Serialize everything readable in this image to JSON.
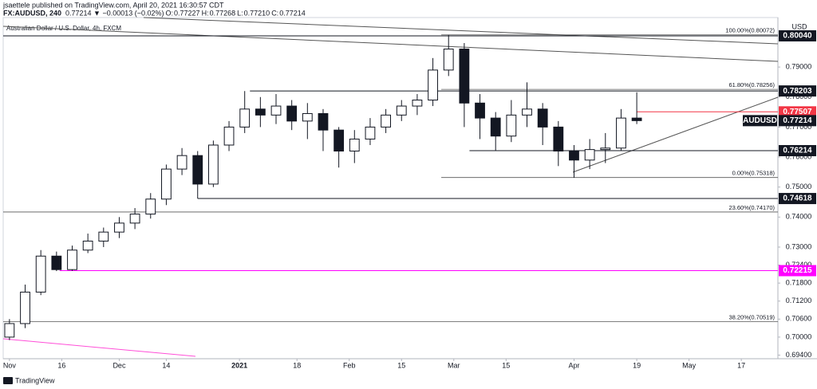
{
  "header": {
    "author_line": "jsaettele published on TradingView.com, April 20, 2021 16:30:57 CDT",
    "symbol": "FX:AUDUSD, 240",
    "change": "0.77214 ▼ −0.00013 (−0.02%)",
    "ohlc": [
      {
        "key": "O:",
        "value": "0.77227"
      },
      {
        "key": "H:",
        "value": "0.77268"
      },
      {
        "key": "L:",
        "value": "0.77210"
      },
      {
        "key": "C:",
        "value": "0.77214"
      }
    ]
  },
  "footer": {
    "brand": "TradingView"
  },
  "chart_data": {
    "type": "candlestick",
    "title": "Australian Dollar / U.S. Dollar, 4h, FXCM",
    "currency": "USD",
    "x": [
      0,
      3,
      6,
      9,
      12,
      15,
      18,
      21,
      24,
      27,
      30,
      33,
      36,
      39,
      42,
      45,
      48,
      51,
      54,
      57,
      60,
      63,
      66,
      69,
      72,
      75,
      78,
      81,
      84,
      87,
      90,
      93,
      96,
      99,
      102,
      105,
      108,
      111,
      114,
      117,
      120
    ],
    "open": [
      0.7,
      0.7045,
      0.715,
      0.727,
      0.7225,
      0.729,
      0.732,
      0.735,
      0.738,
      0.741,
      0.746,
      0.756,
      0.7605,
      0.751,
      0.764,
      0.77,
      0.776,
      0.774,
      0.777,
      0.772,
      0.7745,
      0.769,
      0.762,
      0.766,
      0.77,
      0.774,
      0.777,
      0.779,
      0.789,
      0.796,
      0.778,
      0.773,
      0.767,
      0.774,
      0.776,
      0.77,
      0.762,
      0.759,
      0.7625,
      0.763,
      0.773
    ],
    "high": [
      0.706,
      0.7175,
      0.729,
      0.7285,
      0.7305,
      0.7345,
      0.7365,
      0.74,
      0.743,
      0.748,
      0.7575,
      0.763,
      0.762,
      0.7655,
      0.772,
      0.782,
      0.78,
      0.781,
      0.779,
      0.778,
      0.776,
      0.77,
      0.769,
      0.773,
      0.776,
      0.779,
      0.781,
      0.793,
      0.8007,
      0.798,
      0.781,
      0.775,
      0.779,
      0.7849,
      0.778,
      0.772,
      0.764,
      0.766,
      0.768,
      0.776,
      0.7816
    ],
    "low": [
      0.699,
      0.703,
      0.714,
      0.722,
      0.7221,
      0.728,
      0.73,
      0.733,
      0.736,
      0.7395,
      0.744,
      0.754,
      0.7462,
      0.75,
      0.762,
      0.768,
      0.77,
      0.771,
      0.769,
      0.766,
      0.762,
      0.7565,
      0.758,
      0.764,
      0.768,
      0.772,
      0.774,
      0.777,
      0.787,
      0.77,
      0.766,
      0.762,
      0.765,
      0.77,
      0.764,
      0.757,
      0.7531,
      0.756,
      0.758,
      0.762,
      0.771
    ],
    "close": [
      0.7045,
      0.715,
      0.727,
      0.7225,
      0.729,
      0.732,
      0.735,
      0.738,
      0.741,
      0.746,
      0.756,
      0.7605,
      0.751,
      0.764,
      0.77,
      0.776,
      0.774,
      0.777,
      0.772,
      0.7745,
      0.769,
      0.762,
      0.766,
      0.77,
      0.774,
      0.777,
      0.779,
      0.789,
      0.796,
      0.778,
      0.773,
      0.767,
      0.774,
      0.776,
      0.77,
      0.762,
      0.759,
      0.7625,
      0.763,
      0.773,
      0.77214
    ],
    "up_color": "#ffffff",
    "down_color": "#131722",
    "wick_color": "#131722",
    "xlim": [
      -1.2,
      147
    ],
    "ylim": [
      0.6928,
      0.8065
    ],
    "xticks": [
      {
        "value": 0,
        "label": "Nov"
      },
      {
        "value": 10,
        "label": "16"
      },
      {
        "value": 21,
        "label": "Dec"
      },
      {
        "value": 30,
        "label": "14"
      },
      {
        "value": 44,
        "label": "2021"
      },
      {
        "value": 55,
        "label": "18"
      },
      {
        "value": 65,
        "label": "Feb"
      },
      {
        "value": 75,
        "label": "15"
      },
      {
        "value": 85,
        "label": "Mar"
      },
      {
        "value": 95,
        "label": "15"
      },
      {
        "value": 108,
        "label": "Apr"
      },
      {
        "value": 120,
        "label": "19"
      },
      {
        "value": 130,
        "label": "May"
      },
      {
        "value": 140,
        "label": "17"
      }
    ],
    "yticks": [
      {
        "value": 0.694,
        "label": "0.69400"
      },
      {
        "value": 0.7,
        "label": "0.70000"
      },
      {
        "value": 0.706,
        "label": "0.70600"
      },
      {
        "value": 0.712,
        "label": "0.71200"
      },
      {
        "value": 0.718,
        "label": "0.71800"
      },
      {
        "value": 0.724,
        "label": "0.72400"
      },
      {
        "value": 0.73,
        "label": "0.73000"
      },
      {
        "value": 0.74,
        "label": "0.74000"
      },
      {
        "value": 0.75,
        "label": "0.75000"
      },
      {
        "value": 0.76,
        "label": "0.76000"
      },
      {
        "value": 0.77,
        "label": "0.77000"
      },
      {
        "value": 0.78,
        "label": "0.78000"
      },
      {
        "value": 0.79,
        "label": "0.79000"
      }
    ],
    "levels": [
      {
        "value": 0.8004,
        "label": "0.80040",
        "color": "#131722",
        "x0": -1.2
      },
      {
        "value": 0.78203,
        "label": "0.78203",
        "color": "#131722",
        "x0": 46
      },
      {
        "value": 0.77507,
        "label": "0.77507",
        "color": "#f23645",
        "x0": 120
      },
      {
        "value": 0.76214,
        "label": "0.76214",
        "color": "#131722",
        "x0": 88
      },
      {
        "value": 0.74618,
        "label": "0.74618",
        "color": "#131722",
        "x0": 36
      },
      {
        "value": 0.72215,
        "label": "0.72215",
        "color": "#ff00ff",
        "x0": 9.6
      }
    ],
    "last_price": {
      "value": 0.77214,
      "label": "0.77214",
      "name": "AUDUSD",
      "color": "#131722"
    },
    "fib_levels": [
      {
        "value": 0.80072,
        "label": "100.00%(0.80072)",
        "x0": 82.6
      },
      {
        "value": 0.78256,
        "label": "61.80%(0.78256)",
        "x0": 82.6
      },
      {
        "value": 0.75318,
        "label": "0.00%(0.75318)",
        "x0": 82.6
      },
      {
        "value": 0.7417,
        "label": "23.60%(0.74170)",
        "x0": -1.2
      },
      {
        "value": 0.70519,
        "label": "38.20%(0.70519)",
        "x0": -1.2
      }
    ]
  }
}
